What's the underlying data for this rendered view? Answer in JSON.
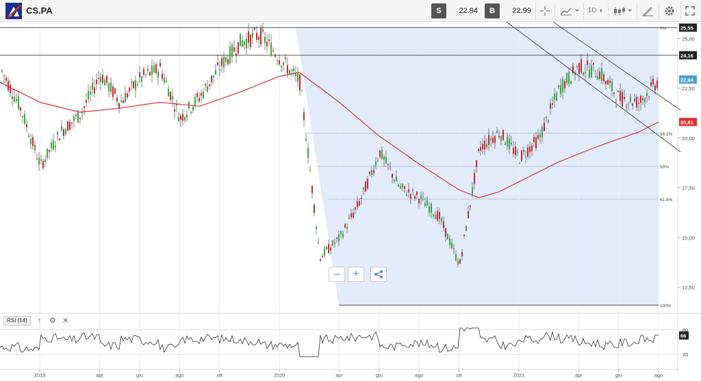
{
  "header": {
    "symbol": "CS.PA",
    "sell_key": "S",
    "sell_price": "22.94",
    "buy_key": "B",
    "buy_price": "22.99",
    "timeframe": "1D"
  },
  "rsi": {
    "label": "RSI (14)",
    "value_tag": "66",
    "levels": [
      "80",
      "20"
    ]
  },
  "price_axis": {
    "ticks": [
      "25,00",
      "22,50",
      "20,00",
      "17,50",
      "15,00",
      "12,50"
    ],
    "tags": {
      "high": "25,55",
      "resistance": "24,16",
      "last": "22,94",
      "ma": "20,81"
    },
    "colors": {
      "last": "#4a9fd8",
      "ma": "#e0312c",
      "dark": "#222222"
    }
  },
  "fib_labels": [
    "0%",
    "38.2%",
    "50%",
    "61.8%",
    "100%"
  ],
  "time_axis": [
    "2019",
    "apr",
    "giu",
    "ago",
    "ott",
    "2020",
    "apr",
    "giu",
    "ago",
    "ott",
    "2021",
    "apr",
    "giu",
    "ago"
  ],
  "chart_data": {
    "type": "candlestick",
    "series": [
      {
        "name": "price",
        "x": [
          "2018-11",
          "2018-12",
          "2019-01",
          "2019-02",
          "2019-03",
          "2019-04",
          "2019-05",
          "2019-06",
          "2019-07",
          "2019-08",
          "2019-09",
          "2019-10",
          "2019-11",
          "2019-12",
          "2020-01",
          "2020-02",
          "2020-03",
          "2020-04",
          "2020-05",
          "2020-06",
          "2020-07",
          "2020-08",
          "2020-09",
          "2020-10",
          "2020-11",
          "2020-12",
          "2021-01",
          "2021-02",
          "2021-03",
          "2021-04",
          "2021-05",
          "2021-06",
          "2021-07",
          "2021-08"
        ],
        "values": [
          23.5,
          21.5,
          18.6,
          20.3,
          21.2,
          23.2,
          21.8,
          23.0,
          23.5,
          21.0,
          22.1,
          23.6,
          24.8,
          25.2,
          24.0,
          22.8,
          14.0,
          15.0,
          16.8,
          19.3,
          17.5,
          17.0,
          16.0,
          13.6,
          19.5,
          20.3,
          19.0,
          20.0,
          22.5,
          23.6,
          23.3,
          22.0,
          21.8,
          22.94
        ]
      },
      {
        "name": "moving average",
        "x": [
          "2018-11",
          "2019-01",
          "2019-03",
          "2019-05",
          "2019-07",
          "2019-09",
          "2019-11",
          "2020-01",
          "2020-02",
          "2020-04",
          "2020-06",
          "2020-08",
          "2020-10",
          "2020-11",
          "2020-12",
          "2021-01",
          "2021-03",
          "2021-05",
          "2021-07",
          "2021-08"
        ],
        "values": [
          22.8,
          21.8,
          21.3,
          21.5,
          21.8,
          21.6,
          22.3,
          23.1,
          23.3,
          21.8,
          20.1,
          18.7,
          17.4,
          17.0,
          17.3,
          17.8,
          18.8,
          19.6,
          20.3,
          20.81
        ]
      }
    ],
    "ylim": [
      11.4,
      25.7
    ],
    "levels": {
      "high": 25.55,
      "resistance": 24.16,
      "low": 11.6
    },
    "fibonacci": [
      {
        "label": "0%",
        "value": 25.55
      },
      {
        "label": "38.2%",
        "value": 20.24
      },
      {
        "label": "50%",
        "value": 18.58
      },
      {
        "label": "61.8%",
        "value": 16.93
      },
      {
        "label": "100%",
        "value": 11.6
      }
    ],
    "rsi": {
      "period": 14,
      "last": 66,
      "levels": [
        80,
        20
      ]
    }
  }
}
